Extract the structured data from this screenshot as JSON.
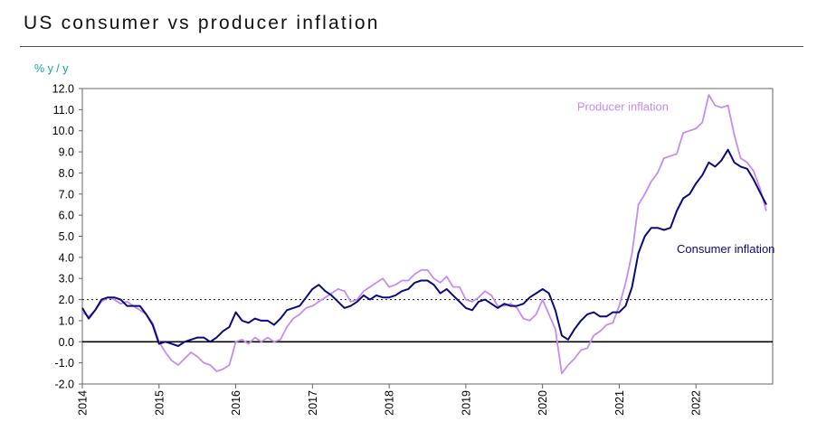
{
  "title": "US consumer vs producer inflation",
  "chart_data": {
    "type": "line",
    "title": "US consumer vs producer inflation",
    "ylabel": "% y / y",
    "xlabel": "",
    "ylim": [
      -2.0,
      12.0
    ],
    "xlim": [
      2014,
      2023
    ],
    "ytick_values": [
      -2,
      -1,
      0,
      1,
      2,
      3,
      4,
      5,
      6,
      7,
      8,
      9,
      10,
      11,
      12
    ],
    "ytick_labels": [
      "-2.0",
      "-1.0",
      "0.0",
      "1.0",
      "2.0",
      "3.0",
      "4.0",
      "5.0",
      "6.0",
      "7.0",
      "8.0",
      "9.0",
      "10.0",
      "11.0",
      "12.0"
    ],
    "xtick_values": [
      2014,
      2015,
      2016,
      2017,
      2018,
      2019,
      2020,
      2021,
      2022
    ],
    "xtick_labels": [
      "2014",
      "2015",
      "2016",
      "2017",
      "2018",
      "2019",
      "2020",
      "2021",
      "2022"
    ],
    "reference_lines": [
      {
        "y": 2.0,
        "style": "dotted",
        "color": "#333333"
      },
      {
        "y": 0.0,
        "style": "solid",
        "color": "#000000"
      }
    ],
    "series": [
      {
        "name": "Consumer inflation",
        "color": "#0a0a7a",
        "label_anchor": {
          "x": 2021.75,
          "y": 4.2
        },
        "x": [
          2014.0,
          2014.083,
          2014.167,
          2014.25,
          2014.333,
          2014.417,
          2014.5,
          2014.583,
          2014.667,
          2014.75,
          2014.833,
          2014.917,
          2015.0,
          2015.083,
          2015.167,
          2015.25,
          2015.333,
          2015.417,
          2015.5,
          2015.583,
          2015.667,
          2015.75,
          2015.833,
          2015.917,
          2016.0,
          2016.083,
          2016.167,
          2016.25,
          2016.333,
          2016.417,
          2016.5,
          2016.583,
          2016.667,
          2016.75,
          2016.833,
          2016.917,
          2017.0,
          2017.083,
          2017.167,
          2017.25,
          2017.333,
          2017.417,
          2017.5,
          2017.583,
          2017.667,
          2017.75,
          2017.833,
          2017.917,
          2018.0,
          2018.083,
          2018.167,
          2018.25,
          2018.333,
          2018.417,
          2018.5,
          2018.583,
          2018.667,
          2018.75,
          2018.833,
          2018.917,
          2019.0,
          2019.083,
          2019.167,
          2019.25,
          2019.333,
          2019.417,
          2019.5,
          2019.583,
          2019.667,
          2019.75,
          2019.833,
          2019.917,
          2020.0,
          2020.083,
          2020.167,
          2020.25,
          2020.333,
          2020.417,
          2020.5,
          2020.583,
          2020.667,
          2020.75,
          2020.833,
          2020.917,
          2021.0,
          2021.083,
          2021.167,
          2021.25,
          2021.333,
          2021.417,
          2021.5,
          2021.583,
          2021.667,
          2021.75,
          2021.833,
          2021.917,
          2022.0,
          2022.083,
          2022.167,
          2022.25,
          2022.333,
          2022.417,
          2022.5,
          2022.583,
          2022.667,
          2022.75,
          2022.833,
          2022.917
        ],
        "values": [
          1.6,
          1.1,
          1.5,
          2.0,
          2.1,
          2.1,
          2.0,
          1.7,
          1.7,
          1.7,
          1.3,
          0.8,
          -0.1,
          0.0,
          -0.1,
          -0.2,
          0.0,
          0.1,
          0.2,
          0.2,
          0.0,
          0.2,
          0.5,
          0.7,
          1.4,
          1.0,
          0.9,
          1.1,
          1.0,
          1.0,
          0.8,
          1.1,
          1.5,
          1.6,
          1.7,
          2.1,
          2.5,
          2.7,
          2.4,
          2.2,
          1.9,
          1.6,
          1.7,
          1.9,
          2.2,
          2.0,
          2.2,
          2.1,
          2.1,
          2.2,
          2.4,
          2.5,
          2.8,
          2.9,
          2.9,
          2.7,
          2.3,
          2.5,
          2.2,
          1.9,
          1.6,
          1.5,
          1.9,
          2.0,
          1.8,
          1.6,
          1.8,
          1.7,
          1.7,
          1.8,
          2.1,
          2.3,
          2.5,
          2.3,
          1.5,
          0.3,
          0.1,
          0.6,
          1.0,
          1.3,
          1.4,
          1.2,
          1.2,
          1.4,
          1.4,
          1.7,
          2.6,
          4.2,
          5.0,
          5.4,
          5.4,
          5.3,
          5.4,
          6.2,
          6.8,
          7.0,
          7.5,
          7.9,
          8.5,
          8.3,
          8.6,
          9.1,
          8.5,
          8.3,
          8.2,
          7.7,
          7.1,
          6.5
        ]
      },
      {
        "name": "Producer inflation",
        "color": "#c48df2",
        "label_anchor": {
          "x": 2020.45,
          "y": 10.95
        },
        "x": [
          2014.0,
          2014.083,
          2014.167,
          2014.25,
          2014.333,
          2014.417,
          2014.5,
          2014.583,
          2014.667,
          2014.75,
          2014.833,
          2014.917,
          2015.0,
          2015.083,
          2015.167,
          2015.25,
          2015.333,
          2015.417,
          2015.5,
          2015.583,
          2015.667,
          2015.75,
          2015.833,
          2015.917,
          2016.0,
          2016.083,
          2016.167,
          2016.25,
          2016.333,
          2016.417,
          2016.5,
          2016.583,
          2016.667,
          2016.75,
          2016.833,
          2016.917,
          2017.0,
          2017.083,
          2017.167,
          2017.25,
          2017.333,
          2017.417,
          2017.5,
          2017.583,
          2017.667,
          2017.75,
          2017.833,
          2017.917,
          2018.0,
          2018.083,
          2018.167,
          2018.25,
          2018.333,
          2018.417,
          2018.5,
          2018.583,
          2018.667,
          2018.75,
          2018.833,
          2018.917,
          2019.0,
          2019.083,
          2019.167,
          2019.25,
          2019.333,
          2019.417,
          2019.5,
          2019.583,
          2019.667,
          2019.75,
          2019.833,
          2019.917,
          2020.0,
          2020.083,
          2020.167,
          2020.25,
          2020.333,
          2020.417,
          2020.5,
          2020.583,
          2020.667,
          2020.75,
          2020.833,
          2020.917,
          2021.0,
          2021.083,
          2021.167,
          2021.25,
          2021.333,
          2021.417,
          2021.5,
          2021.583,
          2021.667,
          2021.75,
          2021.833,
          2021.917,
          2022.0,
          2022.083,
          2022.167,
          2022.25,
          2022.333,
          2022.417,
          2022.5,
          2022.583,
          2022.667,
          2022.75,
          2022.833,
          2022.917
        ],
        "values": [
          1.4,
          1.2,
          1.5,
          1.9,
          2.1,
          2.0,
          1.8,
          1.9,
          1.7,
          1.5,
          1.3,
          0.9,
          0.0,
          -0.5,
          -0.9,
          -1.1,
          -0.8,
          -0.5,
          -0.7,
          -1.0,
          -1.1,
          -1.4,
          -1.3,
          -1.1,
          0.0,
          0.1,
          -0.1,
          0.2,
          0.0,
          0.2,
          0.0,
          0.1,
          0.7,
          1.1,
          1.3,
          1.6,
          1.7,
          1.9,
          2.1,
          2.3,
          2.5,
          2.4,
          1.9,
          2.0,
          2.4,
          2.6,
          2.8,
          3.0,
          2.6,
          2.7,
          2.9,
          2.9,
          3.2,
          3.4,
          3.4,
          3.0,
          2.8,
          3.1,
          2.6,
          2.6,
          2.0,
          1.9,
          2.1,
          2.4,
          2.2,
          1.7,
          1.7,
          1.8,
          1.6,
          1.1,
          1.0,
          1.3,
          2.0,
          1.3,
          0.6,
          -1.5,
          -1.1,
          -0.8,
          -0.4,
          -0.3,
          0.3,
          0.5,
          0.8,
          0.9,
          1.7,
          2.8,
          4.2,
          6.5,
          7.0,
          7.6,
          8.0,
          8.7,
          8.8,
          8.9,
          9.9,
          10.0,
          10.1,
          10.4,
          11.7,
          11.2,
          11.1,
          11.2,
          9.8,
          8.7,
          8.5,
          8.1,
          7.3,
          6.2
        ]
      }
    ]
  }
}
